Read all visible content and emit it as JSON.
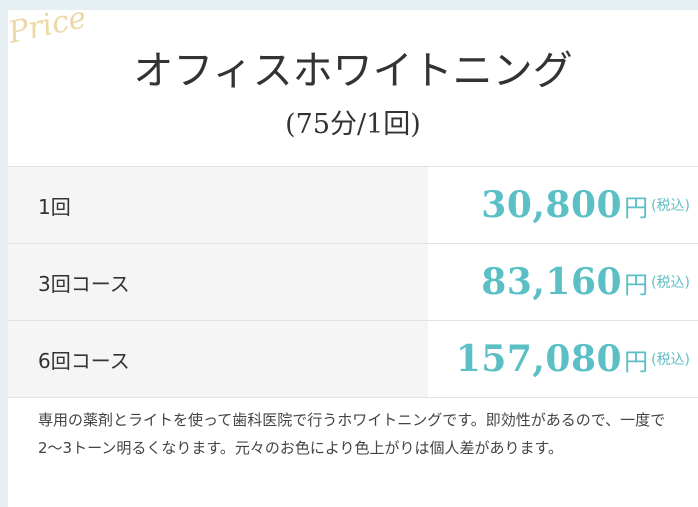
{
  "header": {
    "script": "Price",
    "title": "オフィスホワイトニング",
    "subtitle": "(75分/1回)"
  },
  "table": {
    "rows": [
      {
        "label": "1回",
        "price": "30,800",
        "unit": "円",
        "tax": "(税込)"
      },
      {
        "label": "3回コース",
        "price": "83,160",
        "unit": "円",
        "tax": "(税込)"
      },
      {
        "label": "6回コース",
        "price": "157,080",
        "unit": "円",
        "tax": "(税込)"
      }
    ]
  },
  "note": "専用の薬剤とライトを使って歯科医院で行うホワイトニングです。即効性があるので、一度で2〜3トーン明るくなります。元々のお色により色上がりは個人差があります。"
}
